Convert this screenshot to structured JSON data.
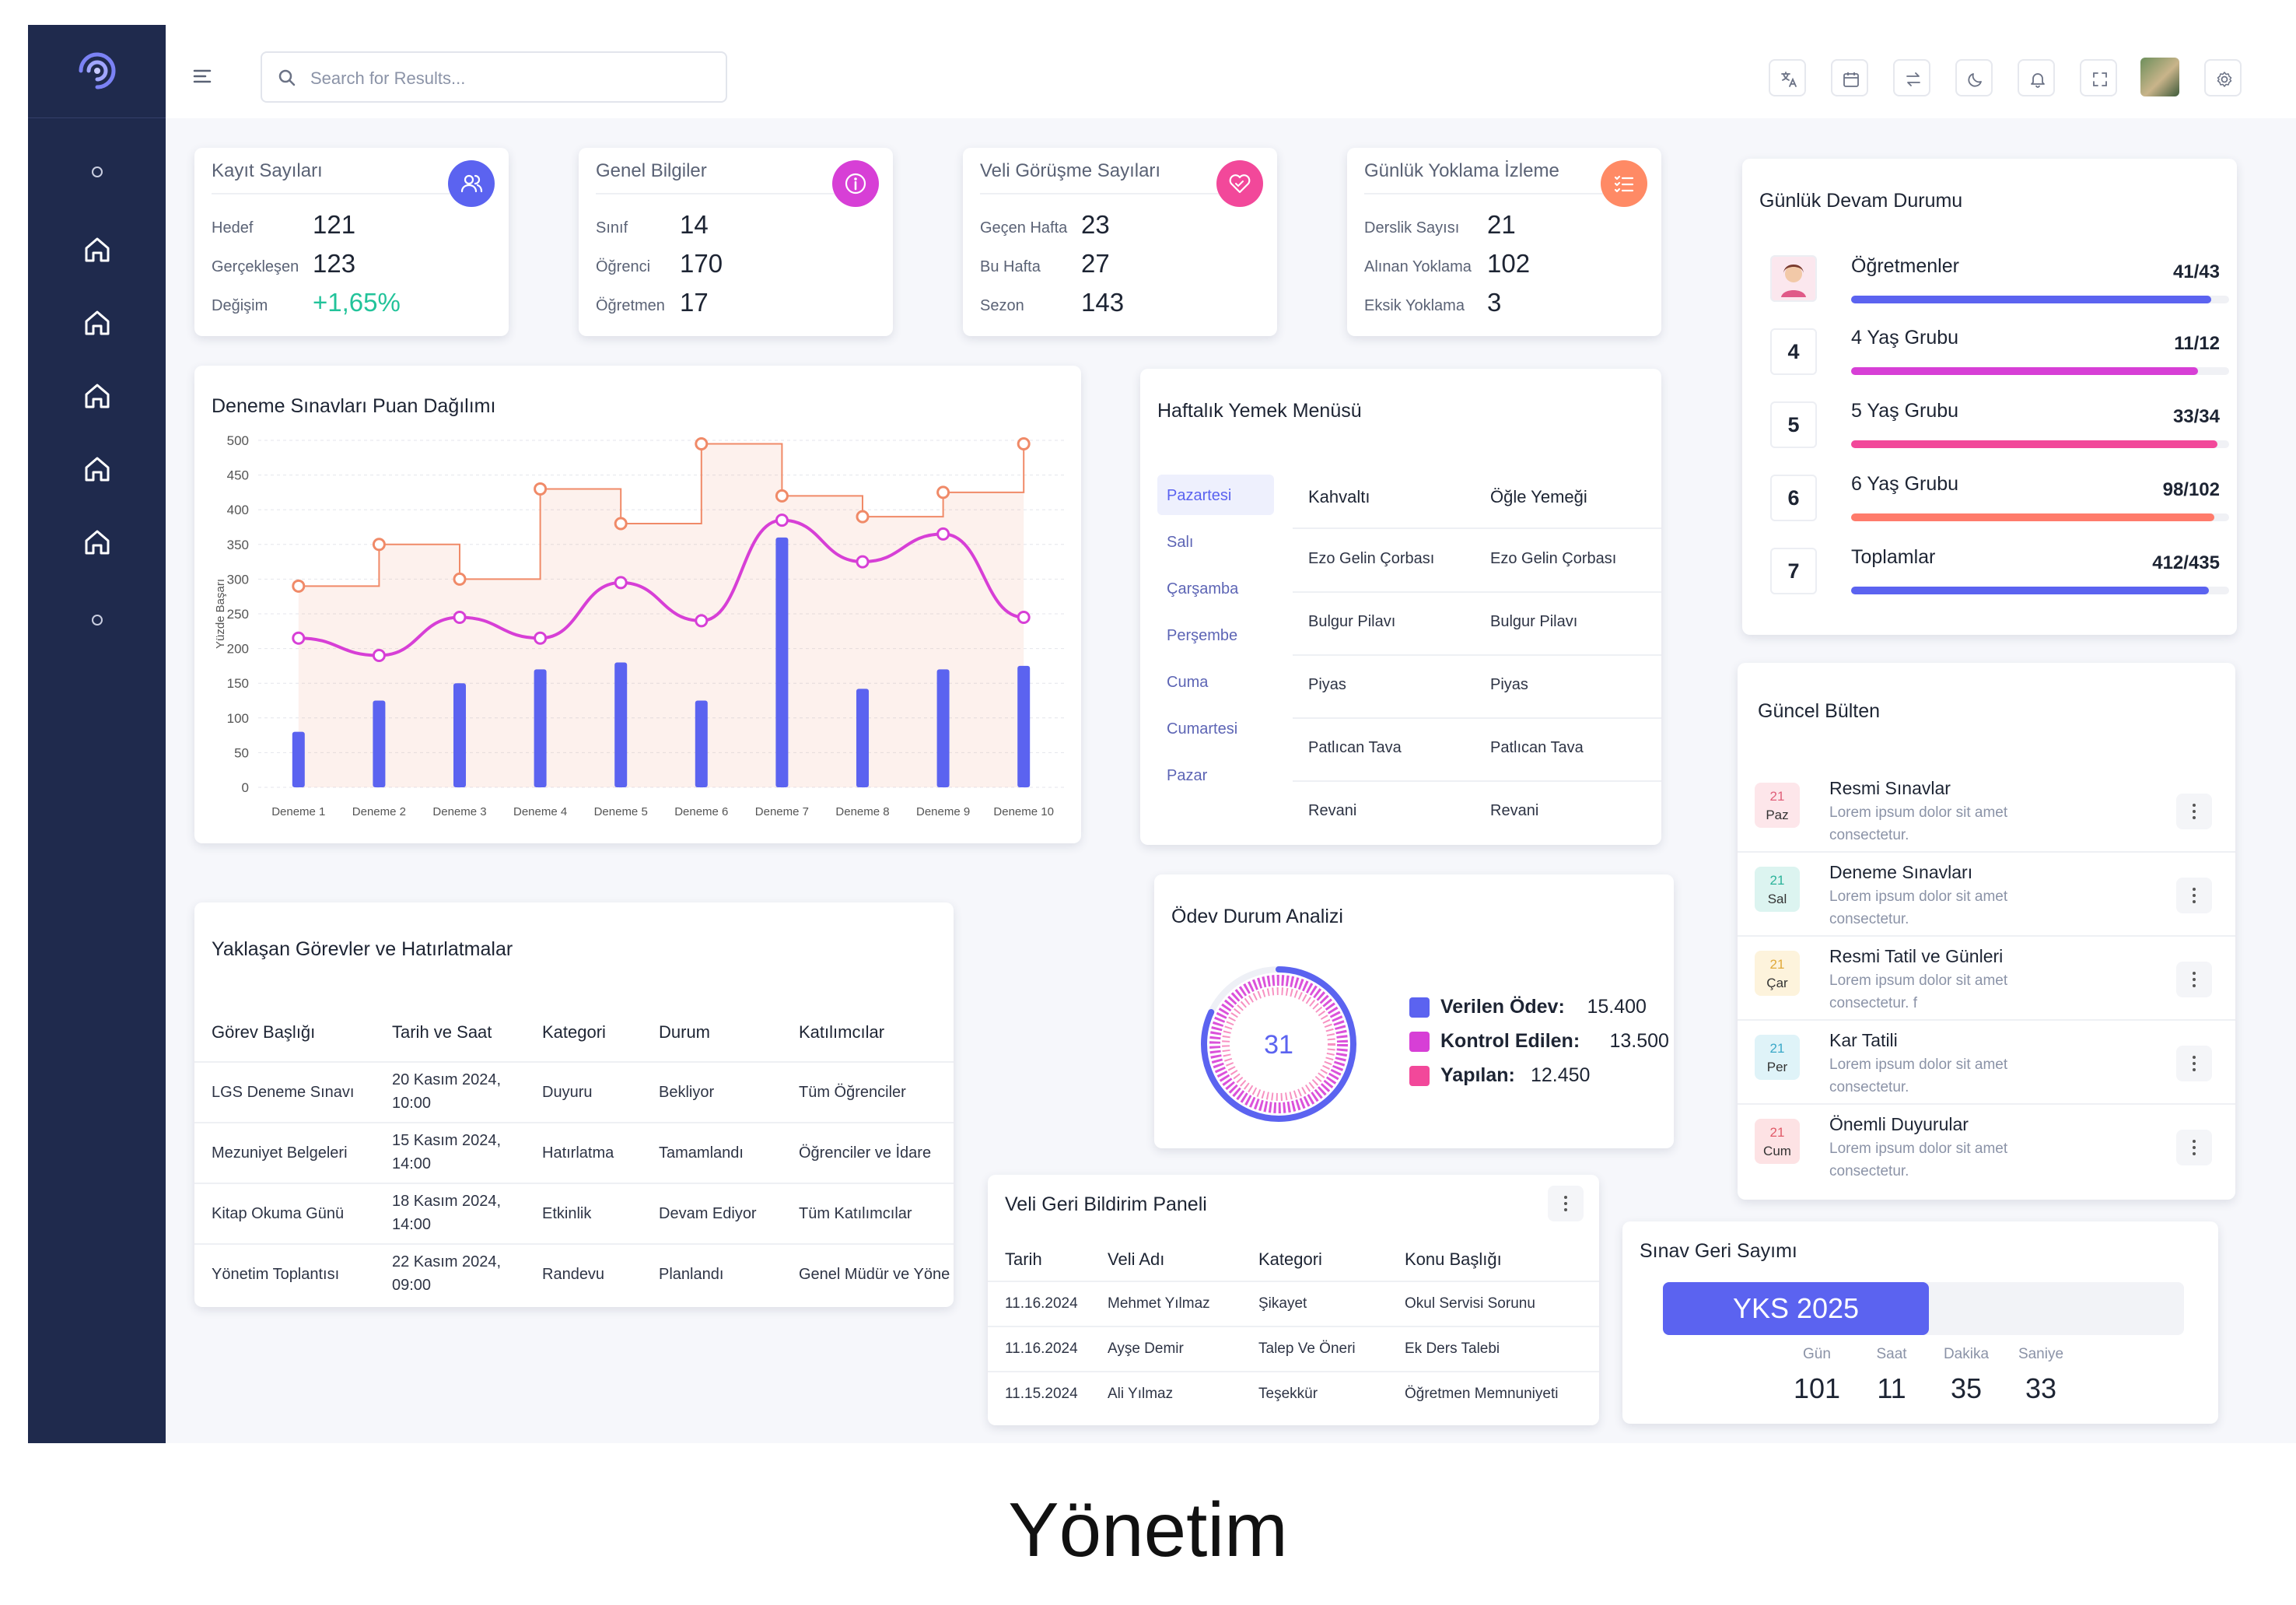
{
  "search": {
    "placeholder": "Search for Results..."
  },
  "stats": [
    {
      "title": "Kayıt Sayıları",
      "icon": "users-icon",
      "color": "#5b63f0",
      "rows": [
        {
          "label": "Hedef",
          "value": "121"
        },
        {
          "label": "Gerçekleşen",
          "value": "123"
        },
        {
          "label": "Değişim",
          "value": "+1,65%"
        }
      ]
    },
    {
      "title": "Genel Bilgiler",
      "icon": "info-icon",
      "color": "#d73fd6",
      "rows": [
        {
          "label": "Sınıf",
          "value": "14"
        },
        {
          "label": "Öğrenci",
          "value": "170"
        },
        {
          "label": "Öğretmen",
          "value": "17"
        }
      ]
    },
    {
      "title": "Veli Görüşme Sayıları",
      "icon": "heart-handshake-icon",
      "color": "#f2489a",
      "rows": [
        {
          "label": "Geçen Hafta",
          "value": "23"
        },
        {
          "label": "Bu Hafta",
          "value": "27"
        },
        {
          "label": "Sezon",
          "value": "143"
        }
      ]
    },
    {
      "title": "Günlük Yoklama İzleme",
      "icon": "checklist-icon",
      "color": "#ff8a65",
      "rows": [
        {
          "label": "Derslik Sayısı",
          "value": "21"
        },
        {
          "label": "Alınan Yoklama",
          "value": "102"
        },
        {
          "label": "Eksik Yoklama",
          "value": "3"
        }
      ]
    }
  ],
  "accent": {
    "green": "#22c39a",
    "blue": "#5b63f0",
    "magenta": "#d73fd6",
    "orange": "#f08a68"
  },
  "chart_data": {
    "type": "bar",
    "title": "Deneme Sınavları Puan Dağılımı",
    "ylabel": "Yüzde Başarı",
    "xlabel": "",
    "categories": [
      "Deneme 1",
      "Deneme 2",
      "Deneme 3",
      "Deneme 4",
      "Deneme 5",
      "Deneme 6",
      "Deneme 7",
      "Deneme 8",
      "Deneme 9",
      "Deneme 10"
    ],
    "ylim": [
      0,
      500
    ],
    "yticks": [
      "0",
      "50",
      "100",
      "150",
      "200",
      "250",
      "300",
      "350",
      "400",
      "450",
      "500"
    ],
    "grid": true,
    "series": [
      {
        "type": "bar",
        "values": [
          80,
          125,
          150,
          170,
          180,
          125,
          360,
          142,
          170,
          175
        ],
        "color": "#5b63f0"
      },
      {
        "type": "line",
        "values": [
          215,
          190,
          245,
          215,
          295,
          240,
          385,
          325,
          365,
          245
        ],
        "color": "#d73fd6"
      },
      {
        "type": "step-area",
        "values": [
          290,
          350,
          300,
          430,
          380,
          495,
          420,
          390,
          425,
          495
        ],
        "color": "#f08a68"
      }
    ]
  },
  "menu": {
    "title": "Haftalık Yemek Menüsü",
    "days": [
      "Pazartesi",
      "Salı",
      "Çarşamba",
      "Perşembe",
      "Cuma",
      "Cumartesi",
      "Pazar"
    ],
    "selected": "Pazartesi",
    "headers": [
      "Kahvaltı",
      "Öğle Yemeği"
    ],
    "rows": [
      [
        "Ezo Gelin Çorbası",
        "Ezo Gelin Çorbası"
      ],
      [
        "Bulgur Pilavı",
        "Bulgur Pilavı"
      ],
      [
        "Piyas",
        "Piyas"
      ],
      [
        "Patlıcan Tava",
        "Patlıcan Tava"
      ],
      [
        "Revani",
        "Revani"
      ]
    ]
  },
  "attendance": {
    "title": "Günlük Devam Durumu",
    "rows": [
      {
        "badge": "",
        "name": "Öğretmenler",
        "value": "41/43",
        "fraction": 0.953,
        "color": "#5b63f0"
      },
      {
        "badge": "4",
        "name": "4 Yaş Grubu",
        "value": "11/12",
        "fraction": 0.917,
        "color": "#d73fd6"
      },
      {
        "badge": "5",
        "name": "5 Yaş Grubu",
        "value": "33/34",
        "fraction": 0.97,
        "color": "#f2489a"
      },
      {
        "badge": "6",
        "name": "6 Yaş Grubu",
        "value": "98/102",
        "fraction": 0.96,
        "color": "#ff7b6b"
      },
      {
        "badge": "7",
        "name": "Toplamlar",
        "value": "412/435",
        "fraction": 0.947,
        "color": "#5b63f0"
      }
    ]
  },
  "bulletin": {
    "title": "Güncel Bülten",
    "items": [
      {
        "day": "21",
        "dow": "Paz",
        "title": "Resmi Sınavlar",
        "desc": "Lorem ipsum dolor sit amet consectetur.",
        "bg": "#fde6ea",
        "fg": "#e0607a"
      },
      {
        "day": "21",
        "dow": "Sal",
        "title": "Deneme Sınavları",
        "desc": "Lorem ipsum dolor sit amet consectetur.",
        "bg": "#dcf4f0",
        "fg": "#2bb39a"
      },
      {
        "day": "21",
        "dow": "Çar",
        "title": "Resmi Tatil ve Günleri",
        "desc": "Lorem ipsum dolor sit amet consectetur. f",
        "bg": "#fdf3dc",
        "fg": "#e0a93a"
      },
      {
        "day": "21",
        "dow": "Per",
        "title": "Kar Tatili",
        "desc": "Lorem ipsum dolor sit amet consectetur.",
        "bg": "#dff3f8",
        "fg": "#3aa8c8"
      },
      {
        "day": "21",
        "dow": "Cum",
        "title": "Önemli Duyurular",
        "desc": "Lorem ipsum dolor sit amet consectetur.",
        "bg": "#fde2e4",
        "fg": "#e05a68"
      }
    ]
  },
  "tasks": {
    "title": "Yaklaşan Görevler ve Hatırlatmalar",
    "headers": [
      "Görev Başlığı",
      "Tarih ve Saat",
      "Kategori",
      "Durum",
      "Katılımcılar"
    ],
    "rows": [
      {
        "title": "LGS Deneme Sınavı",
        "date1": "20 Kasım 2024,",
        "date2": "10:00",
        "cat": "Duyuru",
        "status": "Bekliyor",
        "who": "Tüm Öğrenciler"
      },
      {
        "title": "Mezuniyet Belgeleri",
        "date1": "15 Kasım 2024,",
        "date2": "14:00",
        "cat": "Hatırlatma",
        "status": "Tamamlandı",
        "who": "Öğrenciler ve İdare"
      },
      {
        "title": "Kitap Okuma Günü",
        "date1": "18 Kasım 2024,",
        "date2": "14:00",
        "cat": "Etkinlik",
        "status": "Devam Ediyor",
        "who": "Tüm Katılımcılar"
      },
      {
        "title": "Yönetim Toplantısı",
        "date1": "22 Kasım 2024,",
        "date2": "09:00",
        "cat": "Randevu",
        "status": "Planlandı",
        "who": "Genel Müdür ve Yöne"
      }
    ]
  },
  "homework": {
    "title": "Ödev Durum Analizi",
    "center": "31",
    "legend": [
      {
        "label": "Verilen Ödev:",
        "value": "15.400",
        "color": "#5b63f0"
      },
      {
        "label": "Kontrol Edilen:",
        "value": "13.500",
        "color": "#d73fd6"
      },
      {
        "label": "Yapılan:",
        "value": "12.450",
        "color": "#f2489a"
      }
    ]
  },
  "feedback": {
    "title": "Veli Geri Bildirim Paneli",
    "headers": [
      "Tarih",
      "Veli Adı",
      "Kategori",
      "Konu Başlığı"
    ],
    "rows": [
      [
        "11.16.2024",
        "Mehmet Yılmaz",
        "Şikayet",
        "Okul Servisi Sorunu"
      ],
      [
        "11.16.2024",
        "Ayşe Demir",
        "Talep Ve Öneri",
        "Ek Ders Talebi"
      ],
      [
        "11.15.2024",
        "Ali Yılmaz",
        "Teşekkür",
        "Öğretmen Memnuniyeti"
      ]
    ]
  },
  "countdown": {
    "title": "Sınav Geri Sayımı",
    "exam": "YKS 2025",
    "units": [
      {
        "label": "Gün",
        "value": "101"
      },
      {
        "label": "Saat",
        "value": "11"
      },
      {
        "label": "Dakika",
        "value": "35"
      },
      {
        "label": "Saniye",
        "value": "33"
      }
    ]
  },
  "footer": {
    "caption": "Yönetim"
  }
}
